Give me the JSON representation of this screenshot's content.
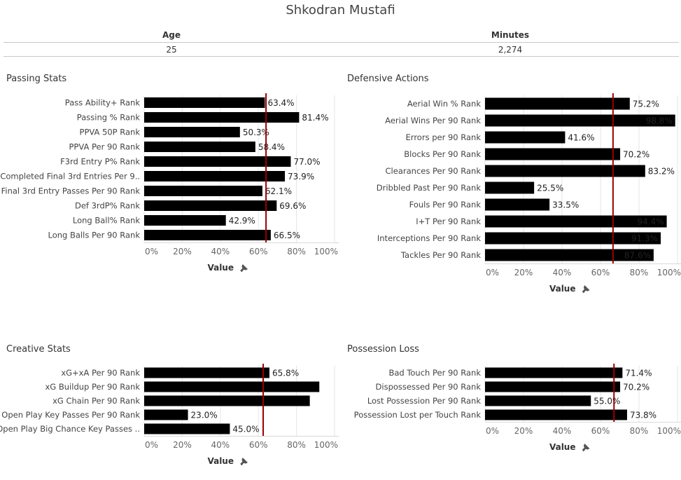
{
  "title": "Shkodran Mustafi",
  "summary": {
    "age_label": "Age",
    "age_value": "25",
    "minutes_label": "Minutes",
    "minutes_value": "2,274"
  },
  "colors": {
    "bar": "#000000",
    "reference_line": "#9b0000",
    "gridline": "#e6e6e6"
  },
  "icons": {
    "axis_pin": "pin-icon"
  },
  "chart_data": [
    {
      "type": "bar",
      "title": "Passing Stats",
      "xlabel": "Value",
      "ylabel": "",
      "xlim": [
        0,
        100
      ],
      "ticks": [
        "0%",
        "20%",
        "40%",
        "60%",
        "80%",
        "100%"
      ],
      "reference_line": 64,
      "categories": [
        "Pass Ability+ Rank",
        "Passing % Rank",
        "PPVA 50P Rank",
        "PPVA Per 90 Rank",
        "F3rd Entry P% Rank",
        "Completed Final 3rd Entries Per 9..",
        "Final 3rd Entry Passes Per 90 Rank",
        "Def 3rdP% Rank",
        "Long Ball% Rank",
        "Long Balls Per 90  Rank"
      ],
      "values": [
        63.4,
        81.4,
        50.3,
        58.4,
        77.0,
        73.9,
        62.1,
        69.6,
        42.9,
        66.5
      ],
      "value_labels": [
        "63.4%",
        "81.4%",
        "50.3%",
        "58.4%",
        "77.0%",
        "73.9%",
        "62.1%",
        "69.6%",
        "42.9%",
        "66.5%"
      ]
    },
    {
      "type": "bar",
      "title": "Defensive Actions",
      "xlabel": "Value",
      "ylabel": "",
      "xlim": [
        0,
        100
      ],
      "ticks": [
        "0%",
        "20%",
        "40%",
        "60%",
        "80%",
        "100%"
      ],
      "reference_line": 66.5,
      "categories": [
        "Aerial Win % Rank",
        "Aerial Wins Per 90 Rank",
        "Errors per 90 Rank",
        "Blocks Per 90 Rank",
        "Clearances Per 90 Rank",
        "Dribbled Past Per 90 Rank",
        "Fouls Per 90 Rank",
        "I+T Per 90 Rank",
        "Interceptions Per 90 Rank",
        "Tackles Per 90 Rank"
      ],
      "values": [
        75.2,
        98.8,
        41.6,
        70.2,
        83.2,
        25.5,
        33.5,
        94.4,
        91.3,
        87.6
      ],
      "value_labels": [
        "75.2%",
        "98.8%",
        "41.6%",
        "70.2%",
        "83.2%",
        "25.5%",
        "33.5%",
        "94.4%",
        "91.3%",
        "87.6%"
      ]
    },
    {
      "type": "bar",
      "title": "Creative Stats",
      "xlabel": "Value",
      "ylabel": "",
      "xlim": [
        0,
        100
      ],
      "ticks": [
        "0%",
        "20%",
        "40%",
        "60%",
        "80%",
        "100%"
      ],
      "reference_line": 62.5,
      "categories": [
        "xG+xA Per 90 Rank",
        "xG Buildup Per 90 Rank",
        "xG Chain Per 90 Rank",
        "Open Play Key Passes Per 90 Rank",
        "Open Play Big Chance Key Passes .."
      ],
      "values": [
        65.8,
        92.0,
        87.0,
        23.0,
        45.0
      ],
      "value_labels": [
        "65.8%",
        "",
        "",
        "23.0%",
        "45.0%"
      ]
    },
    {
      "type": "bar",
      "title": "Possession Loss",
      "xlabel": "Value",
      "ylabel": "",
      "xlim": [
        0,
        100
      ],
      "ticks": [
        "0%",
        "20%",
        "40%",
        "60%",
        "80%",
        "100%"
      ],
      "reference_line": 67,
      "categories": [
        "Bad Touch Per 90 Rank",
        "Dispossessed Per 90 Rank",
        "Lost Possession Per 90 Rank",
        "Possession Lost per Touch Rank"
      ],
      "values": [
        71.4,
        70.2,
        55.0,
        73.8
      ],
      "value_labels": [
        "71.4%",
        "70.2%",
        "55.0%",
        "73.8%"
      ]
    }
  ]
}
